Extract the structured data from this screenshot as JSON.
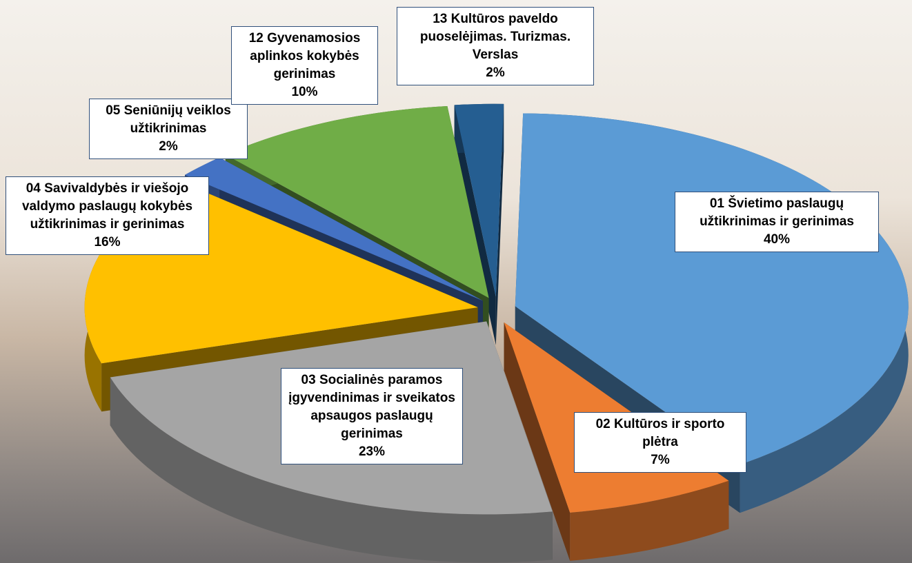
{
  "chart_data": {
    "type": "pie",
    "categories": [
      "01 Švietimo paslaugų užtikrinimas ir gerinimas",
      "02 Kultūros ir sporto plėtra",
      "03 Socialinės paramos įgyvendinimas ir sveikatos apsaugos paslaugų gerinimas",
      "04 Savivaldybės ir viešojo valdymo paslaugų kokybės užtikrinimas ir gerinimas",
      "05 Seniūnijų veiklos užtikrinimas",
      "12 Gyvenamosios aplinkos kokybės gerinimas",
      "13 Kultūros paveldo puoselėjimas. Turizmas. Verslas"
    ],
    "values": [
      40,
      7,
      23,
      16,
      2,
      10,
      2
    ],
    "value_labels": [
      "40%",
      "7%",
      "23%",
      "16%",
      "2%",
      "10%",
      "2%"
    ],
    "colors": [
      "#5b9bd5",
      "#ed7d31",
      "#a5a5a5",
      "#ffc000",
      "#4472c4",
      "#70ad47",
      "#255e91"
    ]
  }
}
